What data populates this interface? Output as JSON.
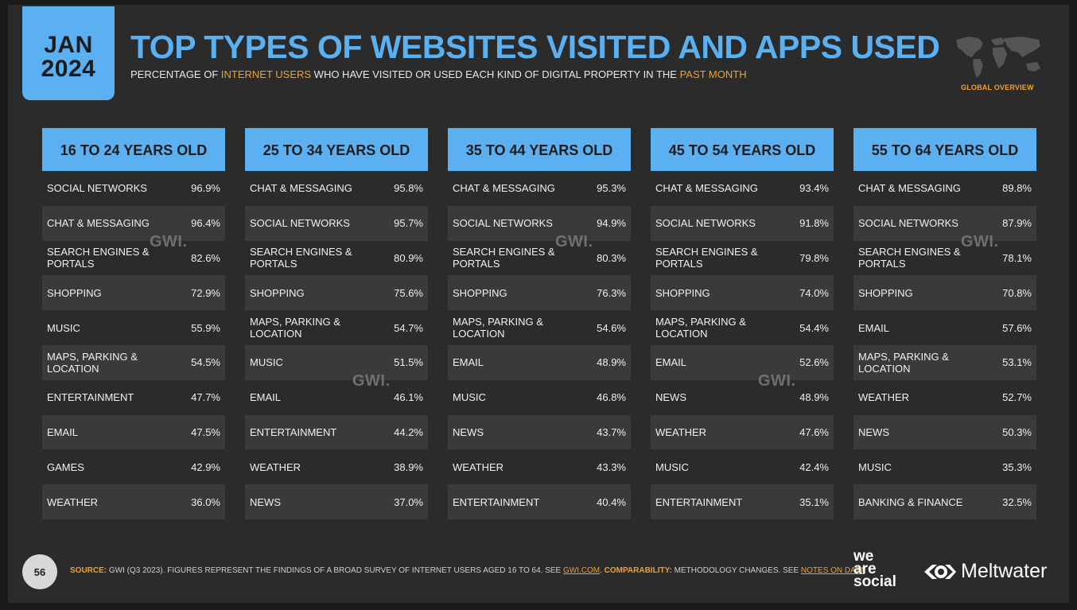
{
  "date": {
    "month": "JAN",
    "year": "2024"
  },
  "title": "TOP TYPES OF WEBSITES VISITED AND APPS USED",
  "subtitle": {
    "p1": "PERCENTAGE OF ",
    "h1": "INTERNET USERS",
    "p2": " WHO HAVE VISITED OR USED EACH KIND OF DIGITAL PROPERTY IN THE ",
    "h2": "PAST MONTH"
  },
  "region_label": "GLOBAL OVERVIEW",
  "watermark": "GWI.",
  "columns": [
    {
      "header": "16 TO 24 YEARS OLD",
      "rows": [
        {
          "label": "SOCIAL NETWORKS",
          "value": "96.9%"
        },
        {
          "label": "CHAT & MESSAGING",
          "value": "96.4%"
        },
        {
          "label": "SEARCH ENGINES & PORTALS",
          "value": "82.6%"
        },
        {
          "label": "SHOPPING",
          "value": "72.9%"
        },
        {
          "label": "MUSIC",
          "value": "55.9%"
        },
        {
          "label": "MAPS, PARKING & LOCATION",
          "value": "54.5%"
        },
        {
          "label": "ENTERTAINMENT",
          "value": "47.7%"
        },
        {
          "label": "EMAIL",
          "value": "47.5%"
        },
        {
          "label": "GAMES",
          "value": "42.9%"
        },
        {
          "label": "WEATHER",
          "value": "36.0%"
        }
      ]
    },
    {
      "header": "25 TO 34 YEARS OLD",
      "rows": [
        {
          "label": "CHAT & MESSAGING",
          "value": "95.8%"
        },
        {
          "label": "SOCIAL NETWORKS",
          "value": "95.7%"
        },
        {
          "label": "SEARCH ENGINES & PORTALS",
          "value": "80.9%"
        },
        {
          "label": "SHOPPING",
          "value": "75.6%"
        },
        {
          "label": "MAPS, PARKING & LOCATION",
          "value": "54.7%"
        },
        {
          "label": "MUSIC",
          "value": "51.5%"
        },
        {
          "label": "EMAIL",
          "value": "46.1%"
        },
        {
          "label": "ENTERTAINMENT",
          "value": "44.2%"
        },
        {
          "label": "WEATHER",
          "value": "38.9%"
        },
        {
          "label": "NEWS",
          "value": "37.0%"
        }
      ]
    },
    {
      "header": "35 TO 44 YEARS OLD",
      "rows": [
        {
          "label": "CHAT & MESSAGING",
          "value": "95.3%"
        },
        {
          "label": "SOCIAL NETWORKS",
          "value": "94.9%"
        },
        {
          "label": "SEARCH ENGINES & PORTALS",
          "value": "80.3%"
        },
        {
          "label": "SHOPPING",
          "value": "76.3%"
        },
        {
          "label": "MAPS, PARKING & LOCATION",
          "value": "54.6%"
        },
        {
          "label": "EMAIL",
          "value": "48.9%"
        },
        {
          "label": "MUSIC",
          "value": "46.8%"
        },
        {
          "label": "NEWS",
          "value": "43.7%"
        },
        {
          "label": "WEATHER",
          "value": "43.3%"
        },
        {
          "label": "ENTERTAINMENT",
          "value": "40.4%"
        }
      ]
    },
    {
      "header": "45 TO 54 YEARS OLD",
      "rows": [
        {
          "label": "CHAT & MESSAGING",
          "value": "93.4%"
        },
        {
          "label": "SOCIAL NETWORKS",
          "value": "91.8%"
        },
        {
          "label": "SEARCH ENGINES & PORTALS",
          "value": "79.8%"
        },
        {
          "label": "SHOPPING",
          "value": "74.0%"
        },
        {
          "label": "MAPS, PARKING & LOCATION",
          "value": "54.4%"
        },
        {
          "label": "EMAIL",
          "value": "52.6%"
        },
        {
          "label": "NEWS",
          "value": "48.9%"
        },
        {
          "label": "WEATHER",
          "value": "47.6%"
        },
        {
          "label": "MUSIC",
          "value": "42.4%"
        },
        {
          "label": "ENTERTAINMENT",
          "value": "35.1%"
        }
      ]
    },
    {
      "header": "55 TO 64 YEARS OLD",
      "rows": [
        {
          "label": "CHAT & MESSAGING",
          "value": "89.8%"
        },
        {
          "label": "SOCIAL NETWORKS",
          "value": "87.9%"
        },
        {
          "label": "SEARCH ENGINES & PORTALS",
          "value": "78.1%"
        },
        {
          "label": "SHOPPING",
          "value": "70.8%"
        },
        {
          "label": "EMAIL",
          "value": "57.6%"
        },
        {
          "label": "MAPS, PARKING & LOCATION",
          "value": "53.1%"
        },
        {
          "label": "WEATHER",
          "value": "52.7%"
        },
        {
          "label": "NEWS",
          "value": "50.3%"
        },
        {
          "label": "MUSIC",
          "value": "35.3%"
        },
        {
          "label": "BANKING & FINANCE",
          "value": "32.5%"
        }
      ]
    }
  ],
  "footer": {
    "page_number": "56",
    "source_key": "SOURCE:",
    "source_text": " GWI (Q3 2023). FIGURES REPRESENT THE FINDINGS OF A BROAD SURVEY OF INTERNET USERS AGED 16 TO 64. SEE ",
    "source_link": "GWI.COM",
    "comparability_key": "COMPARABILITY:",
    "comparability_text": " METHODOLOGY CHANGES. SEE ",
    "comparability_link": "NOTES ON DATA",
    "brand1_line1": "we",
    "brand1_line2": "are",
    "brand1_line3": "social",
    "brand2": "Meltwater"
  },
  "colors": {
    "accent": "#5ab0f0",
    "highlight": "#f0a030",
    "background": "#2b2b2b",
    "row_alt": "#3a3a3a"
  }
}
